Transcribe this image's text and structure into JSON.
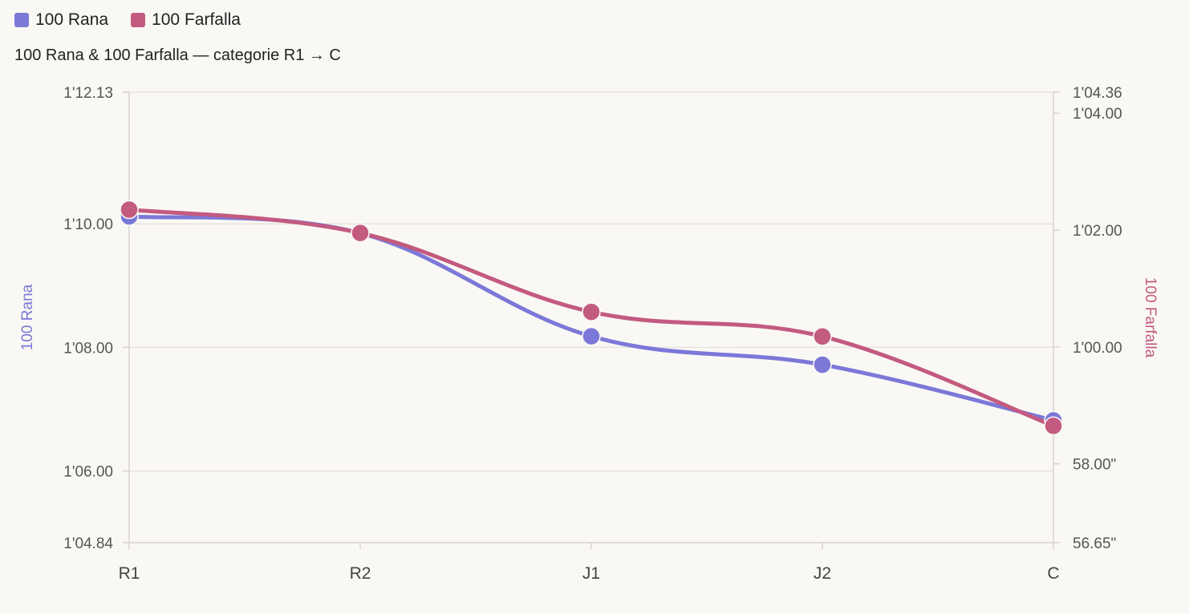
{
  "legend": [
    {
      "name": "100 Rana",
      "color": "#7b78d8"
    },
    {
      "name": "100 Farfalla",
      "color": "#c35a80"
    }
  ],
  "chart_data": {
    "type": "line",
    "title": "100 Rana & 100 Farfalla — categorie R1 → C",
    "categories": [
      "R1",
      "R2",
      "J1",
      "J2",
      "C"
    ],
    "series": [
      {
        "name": "100 Rana",
        "axis": "left",
        "color": "#7b78d8",
        "values_seconds": [
          70.12,
          69.85,
          68.18,
          67.72,
          66.82
        ]
      },
      {
        "name": "100 Farfalla",
        "axis": "right",
        "color": "#c35a80",
        "values_seconds": [
          62.35,
          61.95,
          60.6,
          60.18,
          58.65
        ]
      }
    ],
    "y_left": {
      "label": "100 Rana",
      "color": "#7b78d8",
      "range_seconds": [
        64.84,
        72.13
      ],
      "ticks": [
        {
          "value": 72.13,
          "label": "1'12.13"
        },
        {
          "value": 70.0,
          "label": "1'10.00"
        },
        {
          "value": 68.0,
          "label": "1'08.00"
        },
        {
          "value": 66.0,
          "label": "1'06.00"
        },
        {
          "value": 64.84,
          "label": "1'04.84"
        }
      ]
    },
    "y_right": {
      "label": "100 Farfalla",
      "color": "#c35a80",
      "range_seconds": [
        56.65,
        64.36
      ],
      "ticks": [
        {
          "value": 64.36,
          "label": "1'04.36"
        },
        {
          "value": 64.0,
          "label": "1'04.00"
        },
        {
          "value": 62.0,
          "label": "1'02.00"
        },
        {
          "value": 60.0,
          "label": "1'00.00"
        },
        {
          "value": 58.0,
          "label": "58.00\""
        },
        {
          "value": 56.65,
          "label": "56.65\""
        }
      ]
    },
    "grid_values_left": [
      70.0,
      68.0,
      66.0
    ],
    "grid": true,
    "legend_position": "top-left"
  }
}
